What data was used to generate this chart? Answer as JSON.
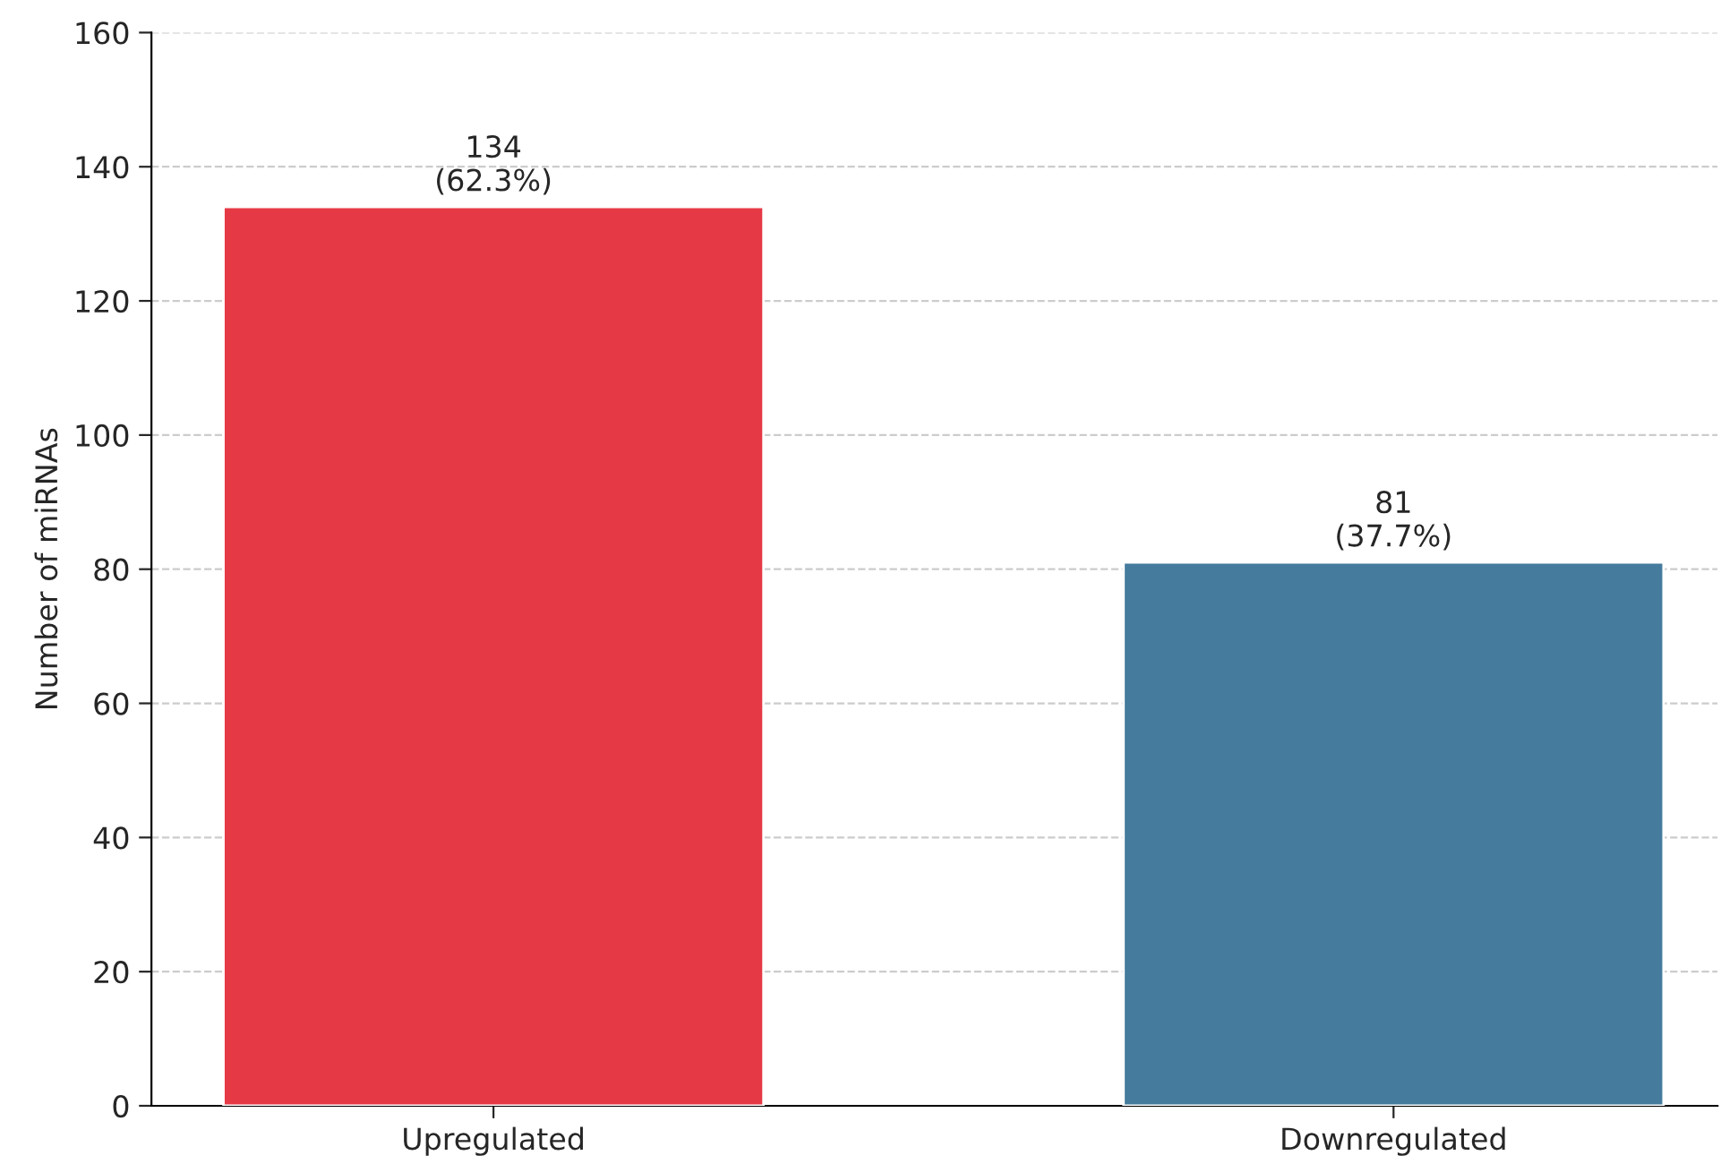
{
  "chart_data": {
    "type": "bar",
    "ylabel": "Number of miRNAs",
    "categories": [
      "Upregulated",
      "Downregulated"
    ],
    "values": [
      134,
      81
    ],
    "colors": [
      "#e63946",
      "#457b9d"
    ],
    "value_labels": [
      "134\n(62.3%)",
      "81\n(37.7%)"
    ],
    "ylim": [
      0,
      160
    ],
    "yticks": [
      0,
      20,
      40,
      60,
      80,
      100,
      120,
      140,
      160
    ],
    "grid": "y"
  }
}
